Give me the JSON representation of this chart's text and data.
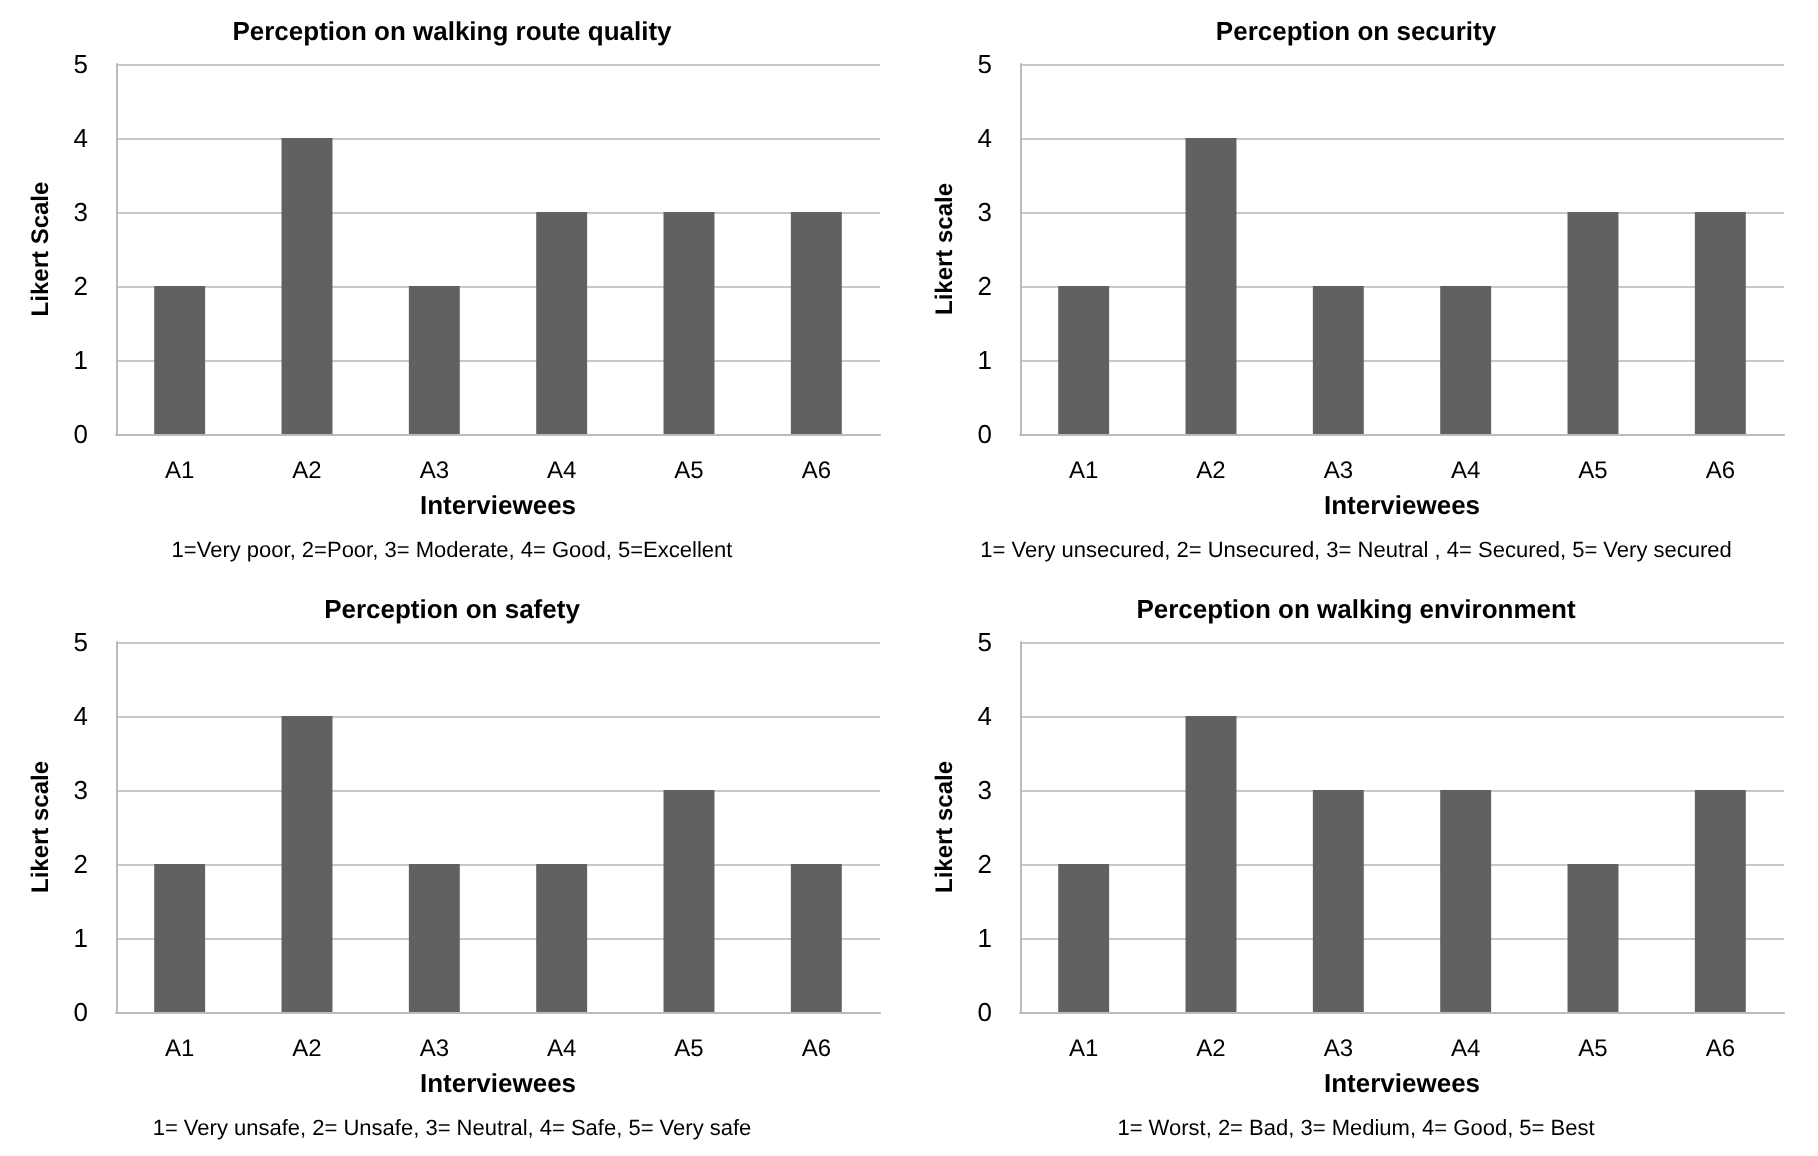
{
  "chart_data": [
    {
      "type": "bar",
      "title": "Perception on walking route quality",
      "xlabel": "Interviewees",
      "ylabel": "Likert Scale",
      "categories": [
        "A1",
        "A2",
        "A3",
        "A4",
        "A5",
        "A6"
      ],
      "values": [
        2,
        4,
        2,
        3,
        3,
        3
      ],
      "color": "#616161",
      "ylim": [
        0,
        5
      ],
      "yticks": [
        0,
        1,
        2,
        3,
        4,
        5
      ],
      "grid": "y",
      "annotations": [
        "1=Very poor, 2=Poor, 3= Moderate, 4= Good, 5=Excellent"
      ]
    },
    {
      "type": "bar",
      "title": "Perception on security",
      "xlabel": "Interviewees",
      "ylabel": "Likert scale",
      "categories": [
        "A1",
        "A2",
        "A3",
        "A4",
        "A5",
        "A6"
      ],
      "values": [
        2,
        4,
        2,
        2,
        3,
        3
      ],
      "color": "#616161",
      "ylim": [
        0,
        5
      ],
      "yticks": [
        0,
        1,
        2,
        3,
        4,
        5
      ],
      "grid": "y",
      "annotations": [
        "1= Very unsecured, 2= Unsecured, 3= Neutral , 4= Secured, 5= Very secured"
      ]
    },
    {
      "type": "bar",
      "title": "Perception on safety",
      "xlabel": "Interviewees",
      "ylabel": "Likert scale",
      "categories": [
        "A1",
        "A2",
        "A3",
        "A4",
        "A5",
        "A6"
      ],
      "values": [
        2,
        4,
        2,
        2,
        3,
        2
      ],
      "color": "#616161",
      "ylim": [
        0,
        5
      ],
      "yticks": [
        0,
        1,
        2,
        3,
        4,
        5
      ],
      "grid": "y",
      "annotations": [
        "1= Very unsafe, 2= Unsafe, 3= Neutral, 4= Safe, 5= Very safe"
      ]
    },
    {
      "type": "bar",
      "title": "Perception on walking environment",
      "xlabel": "Interviewees",
      "ylabel": "Likert scale",
      "categories": [
        "A1",
        "A2",
        "A3",
        "A4",
        "A5",
        "A6"
      ],
      "values": [
        2,
        4,
        3,
        3,
        2,
        3
      ],
      "color": "#616161",
      "ylim": [
        0,
        5
      ],
      "yticks": [
        0,
        1,
        2,
        3,
        4,
        5
      ],
      "grid": "y",
      "annotations": [
        "1= Worst, 2= Bad, 3= Medium, 4= Good, 5= Best"
      ]
    }
  ]
}
